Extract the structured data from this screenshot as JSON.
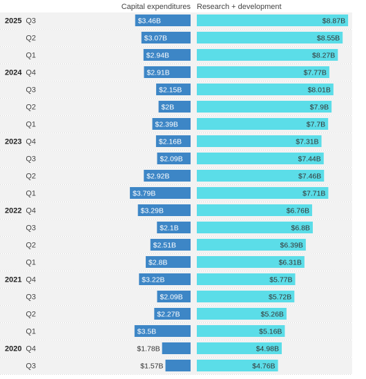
{
  "colors": {
    "capex": "#3d86c6",
    "rnd": "#5bdde8",
    "row_shade": "#f2f2f2",
    "row_rule": "#d8d8d8"
  },
  "chart_data": {
    "type": "bar",
    "orientation": "horizontal-butterfly",
    "series": [
      {
        "name": "Capital expenditures",
        "values": [
          3.46,
          3.07,
          2.94,
          2.91,
          2.15,
          2.0,
          2.39,
          2.16,
          2.09,
          2.92,
          3.79,
          3.29,
          2.1,
          2.51,
          2.8,
          3.22,
          2.09,
          2.27,
          3.5,
          1.78,
          1.57
        ],
        "labels": [
          "$3.46B",
          "$3.07B",
          "$2.94B",
          "$2.91B",
          "$2.15B",
          "$2B",
          "$2.39B",
          "$2.16B",
          "$2.09B",
          "$2.92B",
          "$3.79B",
          "$3.29B",
          "$2.1B",
          "$2.51B",
          "$2.8B",
          "$3.22B",
          "$2.09B",
          "$2.27B",
          "$3.5B",
          "$1.78B",
          "$1.57B"
        ]
      },
      {
        "name": "Research + development",
        "values": [
          8.87,
          8.55,
          8.27,
          7.77,
          8.01,
          7.9,
          7.7,
          7.31,
          7.44,
          7.46,
          7.71,
          6.76,
          6.8,
          6.39,
          6.31,
          5.77,
          5.72,
          5.26,
          5.16,
          4.98,
          4.76
        ],
        "labels": [
          "$8.87B",
          "$8.55B",
          "$8.27B",
          "$7.77B",
          "$8.01B",
          "$7.9B",
          "$7.7B",
          "$7.31B",
          "$7.44B",
          "$7.46B",
          "$7.71B",
          "$6.76B",
          "$6.8B",
          "$6.39B",
          "$6.31B",
          "$5.77B",
          "$5.72B",
          "$5.26B",
          "$5.16B",
          "$4.98B",
          "$4.76B"
        ]
      }
    ],
    "rows": [
      {
        "year": "2025",
        "quarter": "Q3"
      },
      {
        "year": "",
        "quarter": "Q2"
      },
      {
        "year": "",
        "quarter": "Q1"
      },
      {
        "year": "2024",
        "quarter": "Q4"
      },
      {
        "year": "",
        "quarter": "Q3"
      },
      {
        "year": "",
        "quarter": "Q2"
      },
      {
        "year": "",
        "quarter": "Q1"
      },
      {
        "year": "2023",
        "quarter": "Q4"
      },
      {
        "year": "",
        "quarter": "Q3"
      },
      {
        "year": "",
        "quarter": "Q2"
      },
      {
        "year": "",
        "quarter": "Q1"
      },
      {
        "year": "2022",
        "quarter": "Q4"
      },
      {
        "year": "",
        "quarter": "Q3"
      },
      {
        "year": "",
        "quarter": "Q2"
      },
      {
        "year": "",
        "quarter": "Q1"
      },
      {
        "year": "2021",
        "quarter": "Q4"
      },
      {
        "year": "",
        "quarter": "Q3"
      },
      {
        "year": "",
        "quarter": "Q2"
      },
      {
        "year": "",
        "quarter": "Q1"
      },
      {
        "year": "2020",
        "quarter": "Q4"
      },
      {
        "year": "",
        "quarter": "Q3"
      }
    ],
    "xlim_capex": [
      0,
      4
    ],
    "xlim_rnd": [
      0,
      9
    ],
    "grid": false,
    "legend": "column headers at top"
  }
}
